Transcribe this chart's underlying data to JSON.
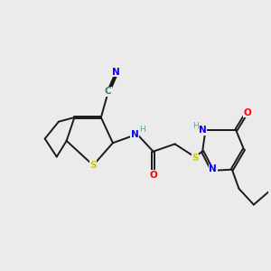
{
  "background_color": "#ebebeb",
  "bond_color": "#1a1a1a",
  "atom_colors": {
    "N": "#0000ff",
    "O": "#ff0000",
    "S": "#cccc00",
    "C": "#3a7a7a",
    "H": "#5f9ea0"
  },
  "figsize": [
    3.0,
    3.0
  ],
  "dpi": 100
}
